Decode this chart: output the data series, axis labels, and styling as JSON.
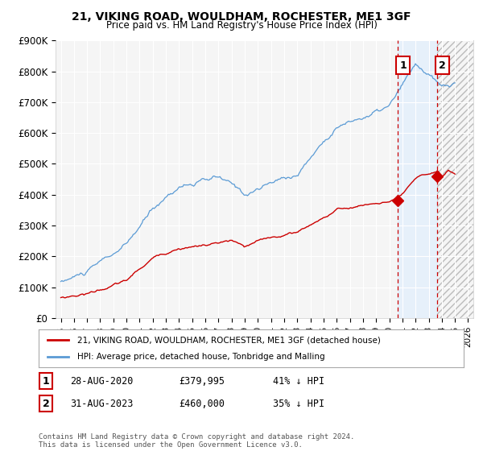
{
  "title": "21, VIKING ROAD, WOULDHAM, ROCHESTER, ME1 3GF",
  "subtitle": "Price paid vs. HM Land Registry's House Price Index (HPI)",
  "ylabel_ticks": [
    "£0",
    "£100K",
    "£200K",
    "£300K",
    "£400K",
    "£500K",
    "£600K",
    "£700K",
    "£800K",
    "£900K"
  ],
  "ytick_values": [
    0,
    100000,
    200000,
    300000,
    400000,
    500000,
    600000,
    700000,
    800000,
    900000
  ],
  "ylim": [
    0,
    900000
  ],
  "xlim_start": 1994.6,
  "xlim_end": 2026.4,
  "hpi_color": "#5b9bd5",
  "price_color": "#cc0000",
  "vline_color": "#cc0000",
  "purchase1_x": 2020.65,
  "purchase1_y": 379995,
  "purchase2_x": 2023.65,
  "purchase2_y": 460000,
  "purchase1_date": "28-AUG-2020",
  "purchase1_price": "£379,995",
  "purchase1_hpi": "41% ↓ HPI",
  "purchase2_date": "31-AUG-2023",
  "purchase2_price": "£460,000",
  "purchase2_hpi": "35% ↓ HPI",
  "legend_line1": "21, VIKING ROAD, WOULDHAM, ROCHESTER, ME1 3GF (detached house)",
  "legend_line2": "HPI: Average price, detached house, Tonbridge and Malling",
  "footnote": "Contains HM Land Registry data © Crown copyright and database right 2024.\nThis data is licensed under the Open Government Licence v3.0.",
  "bg_color": "#ffffff",
  "plot_bg_color": "#f5f5f5",
  "grid_color": "#ffffff",
  "shade_color": "#ddeeff",
  "hatch_color": "#cccccc"
}
